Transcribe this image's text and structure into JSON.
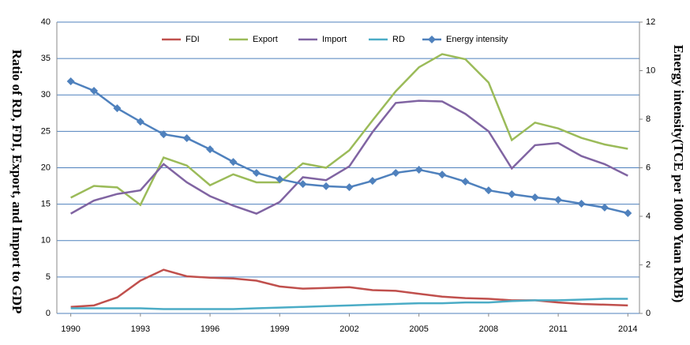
{
  "chart_data": {
    "type": "line",
    "x": [
      1990,
      1991,
      1992,
      1993,
      1994,
      1995,
      1996,
      1997,
      1998,
      1999,
      2000,
      2001,
      2002,
      2003,
      2004,
      2005,
      2006,
      2007,
      2008,
      2009,
      2010,
      2011,
      2012,
      2013,
      2014
    ],
    "xlim": [
      1989.4,
      2014.5
    ],
    "xticks": [
      1990,
      1993,
      1996,
      1999,
      2002,
      2005,
      2008,
      2011,
      2014
    ],
    "ylim": [
      0,
      40
    ],
    "yticks": [
      0,
      5,
      10,
      15,
      20,
      25,
      30,
      35,
      40
    ],
    "y2lim": [
      0,
      12
    ],
    "y2ticks": [
      0,
      2,
      4,
      6,
      8,
      10,
      12
    ],
    "ylabel": "Ratio of RD, FDI, Export, and Import to GDP",
    "y2label": "Energy intensity(TCE per 10000 Yuan RMB)",
    "grid": true,
    "legend": "top",
    "series": [
      {
        "name": "FDI",
        "color": "#c0504d",
        "values": [
          0.9,
          1.1,
          2.2,
          4.5,
          6.0,
          5.1,
          4.9,
          4.8,
          4.5,
          3.7,
          3.4,
          3.5,
          3.6,
          3.2,
          3.1,
          2.7,
          2.3,
          2.1,
          2.0,
          1.8,
          1.8,
          1.5,
          1.3,
          1.2,
          1.1
        ]
      },
      {
        "name": "Export",
        "color": "#9bbb59",
        "values": [
          15.9,
          17.5,
          17.3,
          14.9,
          21.4,
          20.3,
          17.6,
          19.1,
          18.0,
          18.0,
          20.6,
          20.0,
          22.4,
          26.5,
          30.5,
          33.8,
          35.6,
          34.9,
          31.7,
          23.8,
          26.2,
          25.4,
          24.1,
          23.2,
          22.6
        ]
      },
      {
        "name": "Import",
        "color": "#8064a2",
        "values": [
          13.7,
          15.5,
          16.4,
          16.9,
          20.5,
          18.0,
          16.1,
          14.8,
          13.7,
          15.3,
          18.7,
          18.3,
          20.2,
          24.9,
          28.9,
          29.2,
          29.1,
          27.4,
          25.0,
          19.9,
          23.1,
          23.4,
          21.6,
          20.5,
          18.9
        ]
      },
      {
        "name": "RD",
        "color": "#4bacc6",
        "values": [
          0.7,
          0.7,
          0.7,
          0.7,
          0.6,
          0.6,
          0.6,
          0.6,
          0.7,
          0.8,
          0.9,
          1.0,
          1.1,
          1.2,
          1.3,
          1.4,
          1.4,
          1.5,
          1.5,
          1.7,
          1.8,
          1.8,
          1.9,
          2.0,
          2.0
        ]
      },
      {
        "name": "Energy intensity",
        "color": "#4f81bd",
        "axis": "y2",
        "marker": "diamond",
        "values": [
          9.56,
          9.17,
          8.45,
          7.9,
          7.38,
          7.22,
          6.76,
          6.24,
          5.79,
          5.53,
          5.33,
          5.24,
          5.2,
          5.46,
          5.79,
          5.92,
          5.72,
          5.43,
          5.07,
          4.91,
          4.78,
          4.68,
          4.52,
          4.36,
          4.13
        ]
      }
    ]
  }
}
